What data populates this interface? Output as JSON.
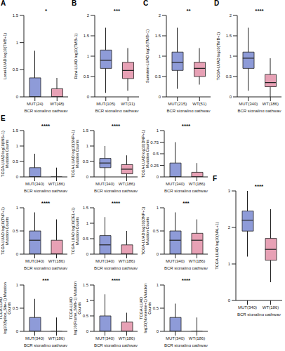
{
  "chart_data": [
    {
      "type": "box",
      "panel": "A",
      "ylabel": "Losei-LUAD log10(TMB+1)",
      "xlabel": "BCR signaling pathway",
      "annotation": "*",
      "categories": [
        "MUT(24)",
        "WT(48)"
      ],
      "colors": [
        "#8e9bd8",
        "#e7a1b5"
      ],
      "ylim": [
        0,
        1.5
      ],
      "yticks": [
        0,
        0.5,
        1,
        1.5
      ],
      "boxes": [
        {
          "q1": 0,
          "median": 0,
          "q3": 0.35,
          "whisker_low": 0,
          "whisker_high": 0.85
        },
        {
          "q1": 0,
          "median": 0,
          "q3": 0.15,
          "whisker_low": 0,
          "whisker_high": 0.35
        }
      ]
    },
    {
      "type": "box",
      "panel": "B",
      "ylabel": "Rizvi-LUAD log10(TMB+1)",
      "xlabel": "BCR signaling pathway",
      "annotation": "***",
      "categories": [
        "MUT(105)",
        "WT(31)"
      ],
      "colors": [
        "#8e9bd8",
        "#e7a1b5"
      ],
      "ylim": [
        0,
        2
      ],
      "yticks": [
        0,
        0.5,
        1,
        1.5,
        2
      ],
      "boxes": [
        {
          "q1": 0.7,
          "median": 0.9,
          "q3": 1.15,
          "whisker_low": 0.1,
          "whisker_high": 1.7
        },
        {
          "q1": 0.45,
          "median": 0.65,
          "q3": 0.85,
          "whisker_low": 0.15,
          "whisker_high": 1.2
        }
      ]
    },
    {
      "type": "box",
      "panel": "C",
      "ylabel": "Samstein-LUAD log10(TMB+1)",
      "xlabel": "BCR signaling pathway",
      "annotation": "**",
      "categories": [
        "MUT(215)",
        "WT(51)"
      ],
      "colors": [
        "#8e9bd8",
        "#e7a1b5"
      ],
      "ylim": [
        0,
        2
      ],
      "yticks": [
        0,
        0.5,
        1,
        1.5,
        2
      ],
      "boxes": [
        {
          "q1": 0.65,
          "median": 0.85,
          "q3": 1.1,
          "whisker_low": 0.2,
          "whisker_high": 1.7
        },
        {
          "q1": 0.5,
          "median": 0.7,
          "q3": 0.85,
          "whisker_low": 0.3,
          "whisker_high": 1.2
        }
      ]
    },
    {
      "type": "box",
      "panel": "D",
      "ylabel": "TCGA-LUAD log10(TMB+1)",
      "xlabel": "BCR signaling pathway",
      "annotation": "****",
      "categories": [
        "MUT(340)",
        "WT(186)"
      ],
      "colors": [
        "#8e9bd8",
        "#e7a1b5"
      ],
      "ylim": [
        0,
        2
      ],
      "yticks": [
        0,
        0.5,
        1,
        1.5,
        2
      ],
      "boxes": [
        {
          "q1": 0.7,
          "median": 0.95,
          "q3": 1.1,
          "whisker_low": 0.15,
          "whisker_high": 1.7
        },
        {
          "q1": 0.25,
          "median": 0.35,
          "q3": 0.55,
          "whisker_low": 0,
          "whisker_high": 0.95
        }
      ]
    },
    {
      "type": "box",
      "panel": "E",
      "ylabel": "TCGA-LUAD log10(INS+1) Mutation Counts",
      "xlabel": "BCR signaling pathway",
      "annotation": "****",
      "categories": [
        "MUT(340)",
        "WT(186)"
      ],
      "colors": [
        "#8e9bd8",
        "#e7a1b5"
      ],
      "ylim": [
        0,
        1.5
      ],
      "yticks": [
        0,
        0.5,
        1,
        1.5
      ],
      "boxes": [
        {
          "q1": 0,
          "median": 0,
          "q3": 0.3,
          "whisker_low": 0,
          "whisker_high": 0.75
        },
        {
          "q1": 0,
          "median": 0,
          "q3": 0,
          "whisker_low": 0,
          "whisker_high": 0.3
        }
      ]
    },
    {
      "type": "box",
      "ylabel": "TCGA-LUAD log10(SNP+1) Mutation Counts",
      "xlabel": "BCR signaling pathway",
      "annotation": "****",
      "categories": [
        "MUT(340)",
        "WT(186)"
      ],
      "colors": [
        "#8e9bd8",
        "#e7a1b5"
      ],
      "ylim": [
        0,
        1.5
      ],
      "yticks": [
        0,
        0.5,
        1,
        1.5
      ],
      "boxes": [
        {
          "q1": 0.3,
          "median": 0.45,
          "q3": 0.6,
          "whisker_low": 0,
          "whisker_high": 1
        },
        {
          "q1": 0.1,
          "median": 0.25,
          "q3": 0.4,
          "whisker_low": 0,
          "whisker_high": 0.7
        }
      ]
    },
    {
      "type": "box",
      "ylabel": "TCGA-LUAD log10(DNP+1) Mutation Counts",
      "xlabel": "BCR signaling pathway",
      "annotation": "****",
      "categories": [
        "MUT(340)",
        "WT(186)"
      ],
      "colors": [
        "#8e9bd8",
        "#e7a1b5"
      ],
      "ylim": [
        0,
        1
      ],
      "yticks": [
        0,
        0.25,
        0.5,
        0.75,
        1
      ],
      "boxes": [
        {
          "q1": 0,
          "median": 0,
          "q3": 0.3,
          "whisker_low": 0,
          "whisker_high": 0.75
        },
        {
          "q1": 0,
          "median": 0,
          "q3": 0.1,
          "whisker_low": 0,
          "whisker_high": 0.3
        }
      ]
    },
    {
      "type": "box",
      "ylabel": "TCGA-LUAD log10(TNP+1) Mutation Counts",
      "xlabel": "BCR signaling pathway",
      "annotation": "****",
      "categories": [
        "MUT(340)",
        "WT(186)"
      ],
      "colors": [
        "#8e9bd8",
        "#e7a1b5"
      ],
      "ylim": [
        0,
        1
      ],
      "yticks": [
        0,
        0.5,
        1
      ],
      "boxes": [
        {
          "q1": 0,
          "median": 0.3,
          "q3": 0.5,
          "whisker_low": 0,
          "whisker_high": 0.9
        },
        {
          "q1": 0,
          "median": 0,
          "q3": 0.3,
          "whisker_low": 0,
          "whisker_high": 0.75
        }
      ]
    },
    {
      "type": "box",
      "ylabel": "TCGA-LUAD log10(DEL+1) Mutation Counts",
      "xlabel": "BCR signaling pathway",
      "annotation": "****",
      "categories": [
        "MUT(340)",
        "WT(186)"
      ],
      "colors": [
        "#8e9bd8",
        "#e7a1b5"
      ],
      "ylim": [
        0,
        1.5
      ],
      "yticks": [
        0,
        0.5,
        1,
        1.5
      ],
      "boxes": [
        {
          "q1": 0,
          "median": 0.3,
          "q3": 0.6,
          "whisker_low": 0,
          "whisker_high": 1.2
        },
        {
          "q1": 0,
          "median": 0,
          "q3": 0.3,
          "whisker_low": 0,
          "whisker_high": 0.75
        }
      ]
    },
    {
      "type": "box",
      "ylabel": "TCGA-LUAD log10(ONP+1) Mutation Counts",
      "xlabel": "BCR signaling pathway",
      "annotation": "***",
      "categories": [
        "MUT(340)",
        "WT(186)"
      ],
      "colors": [
        "#8e9bd8",
        "#e7a1b5"
      ],
      "ylim": [
        0,
        1
      ],
      "yticks": [
        0,
        0.5,
        1
      ],
      "boxes": [
        {
          "q1": 0,
          "median": 0.3,
          "q3": 0.5,
          "whisker_low": 0,
          "whisker_high": 0.9
        },
        {
          "q1": 0,
          "median": 0.3,
          "q3": 0.45,
          "whisker_low": 0,
          "whisker_high": 0.75
        }
      ]
    },
    {
      "type": "box",
      "ylabel": "TCGA-LUAD log10(Splice_Site+1) Mutation Counts",
      "xlabel": "BCR signaling pathway",
      "annotation": "***",
      "categories": [
        "MUT(340)",
        "WT(186)"
      ],
      "colors": [
        "#8e9bd8",
        "#e7a1b5"
      ],
      "ylim": [
        0,
        1
      ],
      "yticks": [
        0,
        0.5,
        1
      ],
      "boxes": [
        {
          "q1": 0,
          "median": 0,
          "q3": 0.3,
          "whisker_low": 0,
          "whisker_high": 0.7
        },
        {
          "q1": 0,
          "median": 0,
          "q3": 0,
          "whisker_low": 0,
          "whisker_high": 0.3
        }
      ]
    },
    {
      "type": "box",
      "ylabel": "TCGA-LUAD log10(Frame_Shift+1) Mutation Counts",
      "xlabel": "BCR signaling pathway",
      "annotation": "****",
      "categories": [
        "MUT(340)",
        "WT(186)"
      ],
      "colors": [
        "#8e9bd8",
        "#e7a1b5"
      ],
      "ylim": [
        0,
        1.5
      ],
      "yticks": [
        0,
        0.5,
        1,
        1.5
      ],
      "boxes": [
        {
          "q1": 0,
          "median": 0,
          "q3": 0.5,
          "whisker_low": 0,
          "whisker_high": 1.2
        },
        {
          "q1": 0,
          "median": 0,
          "q3": 0.3,
          "whisker_low": 0,
          "whisker_high": 0.6
        }
      ]
    },
    {
      "type": "box",
      "ylabel": "TCGA-LUAD log10(Nonsense+1) Mutation Counts",
      "xlabel": "BCR signaling pathway",
      "annotation": "****",
      "categories": [
        "MUT(340)",
        "WT(186)"
      ],
      "colors": [
        "#8e9bd8",
        "#e7a1b5"
      ],
      "ylim": [
        0,
        1
      ],
      "yticks": [
        0,
        0.5,
        1
      ],
      "boxes": [
        {
          "q1": 0,
          "median": 0,
          "q3": 0.3,
          "whisker_low": 0,
          "whisker_high": 0.6
        },
        {
          "q1": 0,
          "median": 0,
          "q3": 0,
          "whisker_low": 0,
          "whisker_high": 0.3
        }
      ]
    },
    {
      "type": "box",
      "panel": "F",
      "ylabel": "TCGA-LUAD log10(NAL+1)",
      "xlabel": "BCR signaling pathway",
      "annotation": "****",
      "categories": [
        "MUT(340)",
        "WT(186)"
      ],
      "colors": [
        "#8e9bd8",
        "#e7a1b5"
      ],
      "ylim": [
        0,
        3
      ],
      "yticks": [
        0,
        1,
        2,
        3
      ],
      "boxes": [
        {
          "q1": 1.9,
          "median": 2.2,
          "q3": 2.45,
          "whisker_low": 1.2,
          "whisker_high": 3
        },
        {
          "q1": 1.1,
          "median": 1.4,
          "q3": 1.7,
          "whisker_low": 0.5,
          "whisker_high": 2.5
        }
      ]
    }
  ]
}
